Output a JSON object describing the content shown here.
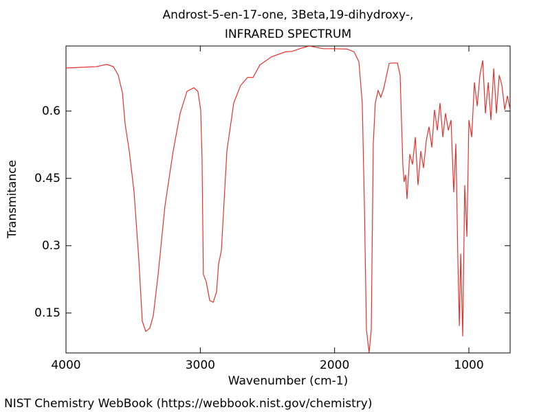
{
  "chart_data": {
    "type": "line",
    "title": "Androst-5-en-17-one, 3Beta,19-dihydroxy-,",
    "subtitle": "INFRARED SPECTRUM",
    "x_label": "Wavenumber (cm-1)",
    "y_label": "Transmitance",
    "source": "NIST Chemistry WebBook (https://webbook.nist.gov/chemistry)",
    "xlim": [
      4000,
      693
    ],
    "ylim": [
      0.061,
      0.745
    ],
    "xticks": [
      4000,
      3000,
      2000,
      1000
    ],
    "yticks": [
      0.15,
      0.3,
      0.45,
      0.6
    ],
    "grid": false,
    "series": [
      {
        "name": "spectrum",
        "color": "#e8302a",
        "x": [
          4000,
          3775,
          3698,
          3647,
          3611,
          3580,
          3560,
          3529,
          3493,
          3457,
          3432,
          3406,
          3376,
          3350,
          3314,
          3263,
          3202,
          3150,
          3099,
          3048,
          3018,
          2997,
          2987,
          2977,
          2956,
          2930,
          2904,
          2879,
          2864,
          2843,
          2802,
          2751,
          2700,
          2648,
          2607,
          2556,
          2469,
          2367,
          2316,
          2290,
          2239,
          2188,
          2137,
          2085,
          2009,
          1906,
          1855,
          1819,
          1794,
          1778,
          1763,
          1743,
          1727,
          1712,
          1697,
          1676,
          1656,
          1635,
          1615,
          1594,
          1574,
          1532,
          1512,
          1492,
          1482,
          1471,
          1461,
          1440,
          1420,
          1399,
          1379,
          1358,
          1338,
          1317,
          1297,
          1276,
          1256,
          1235,
          1215,
          1194,
          1174,
          1153,
          1133,
          1113,
          1097,
          1082,
          1071,
          1061,
          1046,
          1031,
          1015,
          1000,
          979,
          959,
          938,
          918,
          897,
          877,
          856,
          836,
          815,
          795,
          774,
          754,
          733,
          713,
          693
        ],
        "values": [
          0.696,
          0.699,
          0.704,
          0.699,
          0.68,
          0.641,
          0.572,
          0.511,
          0.419,
          0.266,
          0.132,
          0.109,
          0.116,
          0.144,
          0.236,
          0.389,
          0.511,
          0.595,
          0.644,
          0.652,
          0.644,
          0.603,
          0.496,
          0.236,
          0.22,
          0.178,
          0.174,
          0.197,
          0.259,
          0.289,
          0.511,
          0.618,
          0.657,
          0.675,
          0.675,
          0.703,
          0.721,
          0.732,
          0.733,
          0.736,
          0.741,
          0.745,
          0.742,
          0.739,
          0.739,
          0.738,
          0.732,
          0.71,
          0.618,
          0.389,
          0.113,
          0.062,
          0.113,
          0.527,
          0.618,
          0.646,
          0.631,
          0.649,
          0.677,
          0.706,
          0.707,
          0.707,
          0.68,
          0.481,
          0.442,
          0.458,
          0.404,
          0.504,
          0.481,
          0.542,
          0.435,
          0.511,
          0.473,
          0.535,
          0.565,
          0.519,
          0.603,
          0.557,
          0.618,
          0.542,
          0.595,
          0.557,
          0.58,
          0.419,
          0.527,
          0.266,
          0.121,
          0.282,
          0.098,
          0.435,
          0.32,
          0.58,
          0.542,
          0.664,
          0.611,
          0.68,
          0.713,
          0.595,
          0.664,
          0.58,
          0.695,
          0.595,
          0.68,
          0.657,
          0.603,
          0.634,
          0.603
        ]
      }
    ]
  }
}
